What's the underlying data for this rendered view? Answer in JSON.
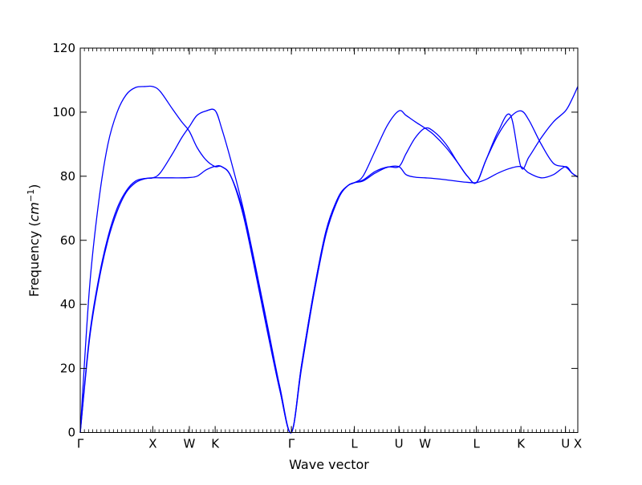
{
  "chart_data": {
    "type": "line",
    "title": "",
    "xlabel": "Wave vector",
    "ylabel": "Frequency",
    "ylabel_unit": "cm",
    "ylabel_unit_exp": "−1",
    "ylim": [
      0,
      120
    ],
    "yticks": [
      0,
      20,
      40,
      60,
      80,
      100,
      120
    ],
    "xlim": [
      0,
      16.19
    ],
    "grid": false,
    "legend": "none",
    "line_color": "#0000ff",
    "kpath_ticks": [
      {
        "label": "Γ",
        "x": 0.0
      },
      {
        "label": "X",
        "x": 2.36
      },
      {
        "label": "W",
        "x": 3.55
      },
      {
        "label": "K",
        "x": 4.39
      },
      {
        "label": "Γ",
        "x": 6.87
      },
      {
        "label": "L",
        "x": 8.92
      },
      {
        "label": "U",
        "x": 10.37
      },
      {
        "label": "W",
        "x": 11.22
      },
      {
        "label": "L",
        "x": 12.89
      },
      {
        "label": "K",
        "x": 14.34
      },
      {
        "label": "U",
        "x": 15.79
      },
      {
        "label": "X",
        "x": 16.19
      }
    ],
    "series": [
      {
        "x": [
          0,
          0.3,
          0.6,
          0.9,
          1.2,
          1.5,
          1.8,
          2.1,
          2.36,
          2.6,
          3.0,
          3.3,
          3.55,
          3.8,
          4.1,
          4.39,
          4.6,
          4.9,
          5.3,
          5.7,
          6.1,
          6.5,
          6.87,
          7.2,
          7.6,
          8.0,
          8.4,
          8.7,
          8.92,
          9.2,
          9.6,
          10.0,
          10.37,
          10.6,
          10.9,
          11.22,
          11.5,
          11.9,
          12.3,
          12.6,
          12.89,
          13.2,
          13.6,
          14.0,
          14.34,
          14.6,
          15.0,
          15.4,
          15.79,
          16.0,
          16.19
        ],
        "y": [
          0,
          29,
          47,
          60,
          69,
          75,
          78,
          79.2,
          79.5,
          79.5,
          79.5,
          79.5,
          79.6,
          80,
          82,
          83.1,
          83,
          80,
          68,
          50,
          31,
          13,
          0,
          20,
          43,
          62,
          73,
          77,
          78,
          78.5,
          81,
          82.8,
          83,
          80.5,
          79.7,
          79.5,
          79.3,
          78.9,
          78.4,
          78.1,
          78,
          79,
          81,
          82.5,
          83,
          81,
          79.5,
          80.5,
          83,
          81,
          79.8
        ]
      },
      {
        "x": [
          0,
          0.3,
          0.6,
          0.9,
          1.2,
          1.5,
          1.8,
          2.1,
          2.36,
          2.6,
          3.0,
          3.3,
          3.55,
          3.8,
          4.1,
          4.39,
          4.6,
          4.9,
          5.3,
          5.7,
          6.1,
          6.5,
          6.87,
          7.2,
          7.6,
          8.0,
          8.4,
          8.7,
          8.92,
          9.2,
          9.6,
          10.0,
          10.37,
          10.6,
          10.9,
          11.22,
          11.5,
          11.9,
          12.3,
          12.6,
          12.89,
          13.2,
          13.6,
          14.0,
          14.34,
          14.6,
          15.0,
          15.4,
          15.79,
          16.0,
          16.19
        ],
        "y": [
          0,
          30,
          48,
          61,
          70,
          75.5,
          78.5,
          79.3,
          79.5,
          81,
          87,
          92,
          95.5,
          99,
          100.4,
          100.5,
          95,
          85,
          70,
          52,
          33,
          14,
          0,
          21,
          44,
          63,
          73.5,
          77,
          78,
          78.8,
          81.5,
          82.9,
          83,
          87,
          92,
          95,
          94,
          90,
          84,
          80,
          78,
          85,
          94,
          99,
          82.9,
          86,
          92,
          97,
          100.4,
          104,
          108
        ]
      },
      {
        "x": [
          0,
          0.3,
          0.6,
          0.9,
          1.2,
          1.5,
          1.8,
          2.1,
          2.36,
          2.6,
          3.0,
          3.3,
          3.55,
          3.8,
          4.1,
          4.39,
          4.6,
          4.9,
          5.3,
          5.7,
          6.1,
          6.5,
          6.87,
          7.2,
          7.6,
          8.0,
          8.4,
          8.7,
          8.92,
          9.2,
          9.6,
          10.0,
          10.37,
          10.6,
          10.9,
          11.22,
          11.5,
          11.9,
          12.3,
          12.6,
          12.89,
          13.2,
          13.6,
          14.0,
          14.34,
          14.6,
          15.0,
          15.4,
          15.79,
          16.0,
          16.19
        ],
        "y": [
          0,
          45,
          72,
          90,
          100,
          105.5,
          107.7,
          108,
          108,
          106.5,
          101,
          97,
          94,
          89,
          85,
          83,
          83,
          80,
          69,
          51,
          32,
          13,
          0,
          21,
          44,
          63,
          73.5,
          77,
          78,
          80,
          88,
          96,
          100.4,
          99,
          97,
          95,
          93,
          89,
          84,
          80,
          78,
          85,
          93,
          98.5,
          100.4,
          97.5,
          90,
          84,
          82.9,
          81,
          79.7
        ]
      }
    ]
  }
}
